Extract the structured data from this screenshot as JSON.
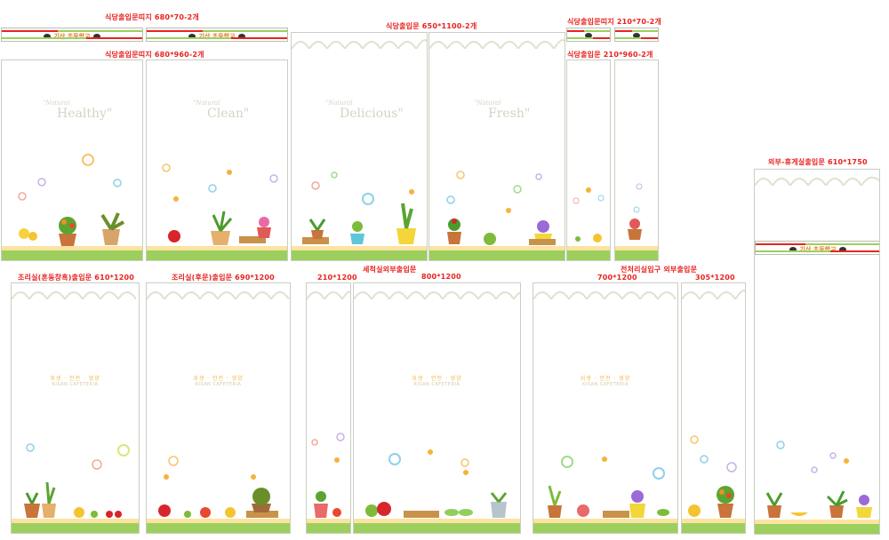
{
  "labels": {
    "cafeteria_band_top": "식당출입문띠지 680*70-2개",
    "cafeteria_door_680": "식당출입문띠지 680*960-2개",
    "cafeteria_door_650": "식당출입문 650*1100-2개",
    "cafeteria_band_210": "식당출입문띠지 210*70-2개",
    "cafeteria_door_210": "식당출입문 210*960-2개",
    "outside_lounge": "외부-휴게실출입문 610*1750",
    "cooking_mix": "조리실(혼동창흑)출입문 610*1200",
    "cooking_back": "조리실(후문)출입문 690*1200",
    "size_210_1200": "210*1200",
    "washroom_outside": "세척실외부출입문",
    "size_800_1200": "800*1200",
    "prep_room": "전처리실입구 외부출입문",
    "size_700_1200": "700*1200",
    "size_305_1200": "305*1200"
  },
  "school_name": "기산 초등학교",
  "natural_word": "\"Natural",
  "panel_words": {
    "healthy": "Healthy\"",
    "clean": "Clean\"",
    "delicious": "Delicious\"",
    "fresh": "Fresh\""
  },
  "slogan_ko": "위생 · 안전 · 영양",
  "slogan_en": "KISAN CAFETERIA",
  "colors": {
    "label_red": "#e8231f",
    "grass": "#9dcf5e",
    "shelf": "#fbe3a2",
    "school_orange": "#e07a1a"
  }
}
